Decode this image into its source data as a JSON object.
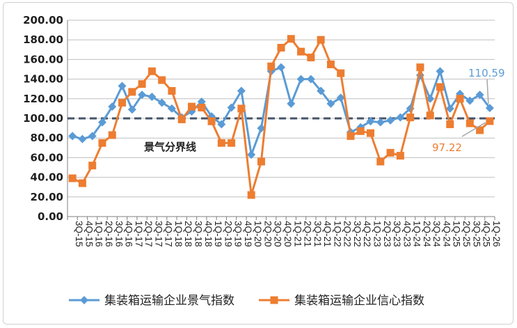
{
  "chart_data": {
    "type": "line",
    "categories": [
      "3Q-15",
      "4Q-15",
      "1Q-16",
      "2Q-16",
      "3Q-16",
      "4Q-16",
      "1Q-17",
      "2Q-17",
      "3Q-17",
      "4Q-17",
      "1Q-18",
      "2Q-18",
      "3Q-18",
      "4Q-18",
      "1Q-19",
      "2Q-19",
      "3Q-19",
      "4Q-19",
      "1Q-20",
      "2Q-20",
      "3Q-20",
      "4Q-20",
      "1Q-21",
      "2Q-21",
      "3Q-21",
      "4Q-21",
      "1Q-22",
      "2Q-22",
      "3Q-22",
      "4Q-22",
      "1Q-23",
      "2Q-23",
      "3Q-23",
      "4Q-23",
      "1Q-24",
      "2Q-24",
      "3Q-24",
      "4Q-24",
      "1Q-25",
      "2Q-25",
      "3Q-25",
      "4Q-25",
      "1Q-26"
    ],
    "series": [
      {
        "name": "集装箱运输企业景气指数",
        "color": "#5b9bd5",
        "marker": "diamond",
        "values": [
          82,
          79,
          82,
          96,
          112,
          133,
          109,
          124,
          122,
          116,
          110,
          101,
          107,
          117,
          102,
          94,
          111,
          128,
          63,
          90,
          148,
          152,
          115,
          140,
          140,
          128,
          115,
          121,
          86,
          91,
          97,
          96,
          98,
          101,
          110,
          144,
          120,
          148,
          110,
          125,
          118,
          124,
          110.59
        ]
      },
      {
        "name": "集装箱运输企业信心指数",
        "color": "#ed7d31",
        "marker": "square",
        "values": [
          39,
          34,
          52,
          75,
          83,
          116,
          127,
          135,
          148,
          139,
          128,
          99,
          112,
          111,
          97,
          75,
          75,
          110,
          22,
          56,
          153,
          172,
          181,
          168,
          162,
          180,
          155,
          146,
          82,
          87,
          85,
          56,
          65,
          62,
          101,
          152,
          103,
          132,
          94,
          120,
          95,
          88,
          97.22
        ]
      }
    ],
    "ylim": [
      0,
      200
    ],
    "yticks": [
      "0.00",
      "20.00",
      "40.00",
      "60.00",
      "80.00",
      "100.00",
      "120.00",
      "140.00",
      "160.00",
      "180.00",
      "200.00"
    ],
    "reference_line": {
      "value": 100,
      "label": "景气分界线",
      "color": "#44546a",
      "style": "dashed"
    },
    "end_labels": {
      "series_0": "110.59",
      "series_1": "97.22"
    },
    "grid": true,
    "legend": "bottom"
  }
}
